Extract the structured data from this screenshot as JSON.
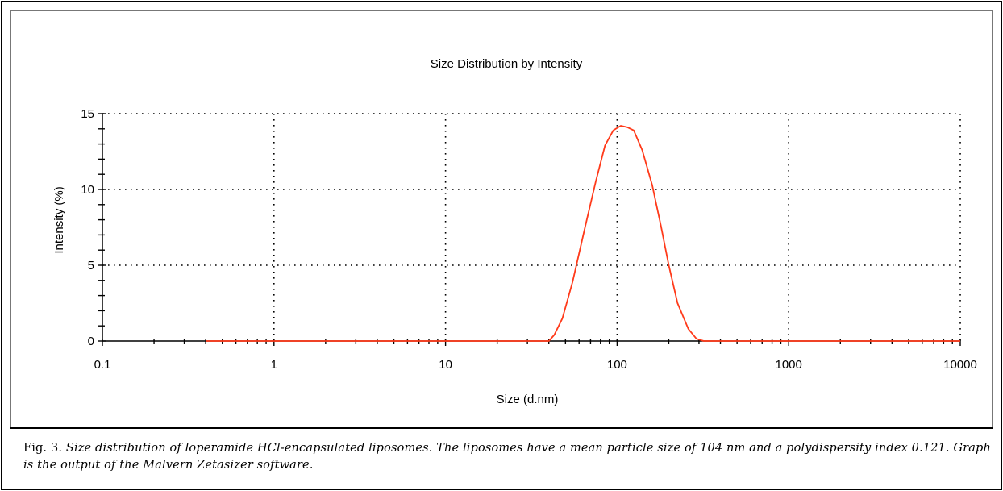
{
  "chart_data": {
    "type": "line",
    "title": "Size Distribution by Intensity",
    "xlabel": "Size (d.nm)",
    "ylabel": "Intensity (%)",
    "xscale": "log",
    "xlim": [
      0.1,
      10000
    ],
    "ylim": [
      0,
      15
    ],
    "xticks": [
      "0.1",
      "1",
      "10",
      "100",
      "1000",
      "10000"
    ],
    "yticks": [
      "0",
      "5",
      "10",
      "15"
    ],
    "grid": true,
    "line_color": "#ff3a1a",
    "series": [
      {
        "name": "",
        "x": [
          0.4,
          40,
          43,
          48,
          55,
          65,
          75,
          85,
          95,
          105,
          115,
          125,
          140,
          160,
          180,
          200,
          225,
          260,
          290,
          320,
          10000
        ],
        "y": [
          0,
          0,
          0.4,
          1.5,
          3.9,
          7.5,
          10.5,
          12.9,
          13.9,
          14.2,
          14.1,
          13.9,
          12.6,
          10.3,
          7.6,
          5.0,
          2.5,
          0.8,
          0.15,
          0,
          0
        ]
      }
    ]
  },
  "caption": {
    "label": "Fig. 3.",
    "text": "Size distribution of loperamide HCl-encapsulated liposomes. The liposomes have a mean particle size of 104 nm and a polydispersity index 0.121. Graph is the output of the Malvern Zetasizer software."
  }
}
